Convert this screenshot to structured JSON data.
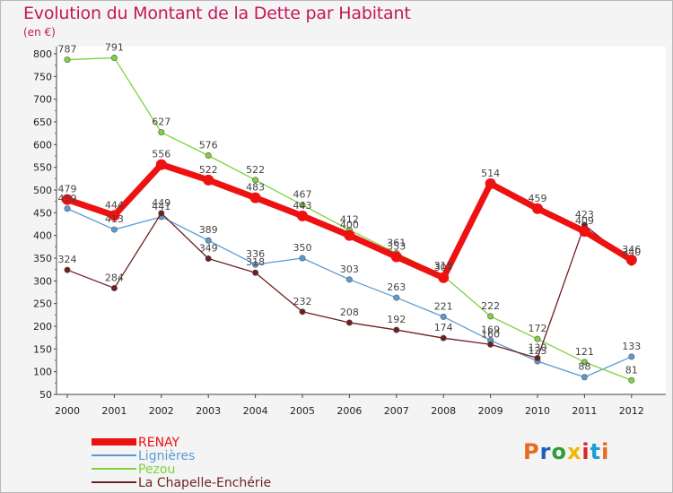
{
  "header": {
    "title": "Evolution du Montant de la Dette par Habitant",
    "unit": "(en €)"
  },
  "logo": {
    "text": "Proxiti",
    "colors": [
      "#e86a1a",
      "#1d5fbf",
      "#2e9e3a",
      "#f2b705",
      "#d62828",
      "#1d9bd6",
      "#e86a1a"
    ]
  },
  "chart_data": {
    "type": "line",
    "title": "Evolution du Montant de la Dette par Habitant",
    "xlabel": "",
    "ylabel": "(en €)",
    "x": [
      "2000",
      "2001",
      "2002",
      "2003",
      "2004",
      "2005",
      "2006",
      "2007",
      "2008",
      "2009",
      "2010",
      "2011",
      "2012"
    ],
    "ylim": [
      50,
      800
    ],
    "yticks": [
      50,
      100,
      150,
      200,
      250,
      300,
      350,
      400,
      450,
      500,
      550,
      600,
      650,
      700,
      750,
      800
    ],
    "grid": false,
    "legend_position": "bottom-left",
    "series": [
      {
        "name": "RENAY",
        "color": "#ee1111",
        "values": [
          479,
          444,
          556,
          522,
          483,
          443,
          400,
          353,
          307,
          514,
          459,
          409,
          346
        ]
      },
      {
        "name": "Lignières",
        "color": "#5b9bd5",
        "values": [
          459,
          413,
          441,
          389,
          336,
          350,
          303,
          263,
          221,
          169,
          123,
          88,
          133
        ]
      },
      {
        "name": "Pezou",
        "color": "#7ed23f",
        "values": [
          787,
          791,
          627,
          576,
          522,
          467,
          412,
          361,
          311,
          222,
          172,
          121,
          81
        ]
      },
      {
        "name": "La Chapelle-Enchérie",
        "color": "#6d1f22",
        "values": [
          324,
          284,
          449,
          349,
          318,
          232,
          208,
          192,
          174,
          160,
          130,
          423,
          340
        ]
      }
    ]
  }
}
